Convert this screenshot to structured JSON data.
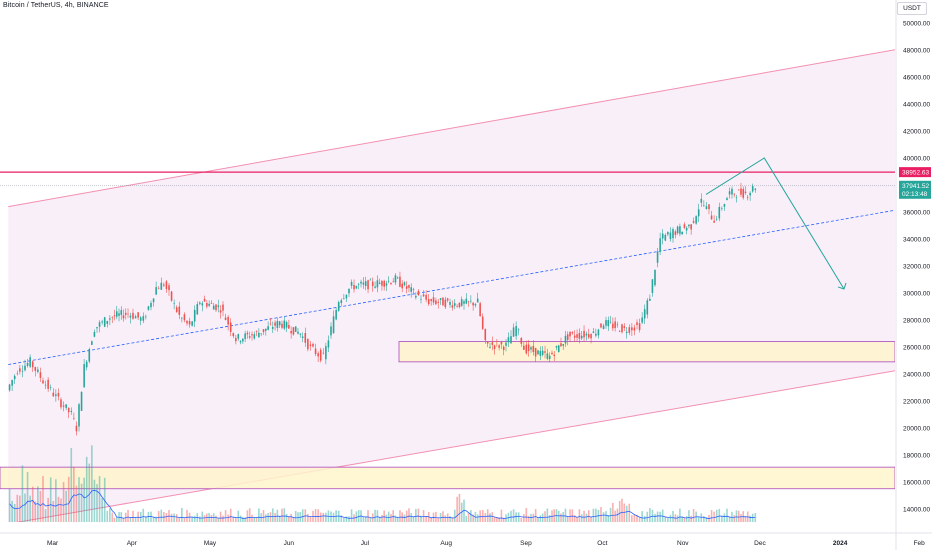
{
  "header": {
    "symbol_line": "Bitcoin / TetherUS, 4h, BINANCE"
  },
  "currency_button": "USDT",
  "price_axis": {
    "ticks": [
      14000,
      16000,
      18000,
      20000,
      22000,
      24000,
      26000,
      28000,
      30000,
      32000,
      34000,
      36000,
      38000,
      40000,
      42000,
      44000,
      46000,
      48000,
      50000
    ],
    "tick_labels": [
      "14000.00",
      "16000.00",
      "18000.00",
      "20000.00",
      "22000.00",
      "24000.00",
      "26000.00",
      "28000.00",
      "30000.00",
      "32000.00",
      "34000.00",
      "36000.00",
      "38000.00",
      "40000.00",
      "42000.00",
      "44000.00",
      "46000.00",
      "48000.00",
      "50000.00"
    ]
  },
  "time_axis": {
    "labels": [
      {
        "label": "Mar",
        "date": "2023-03-01"
      },
      {
        "label": "Apr",
        "date": "2023-04-01"
      },
      {
        "label": "May",
        "date": "2023-05-01"
      },
      {
        "label": "Jun",
        "date": "2023-06-01"
      },
      {
        "label": "Jul",
        "date": "2023-07-01"
      },
      {
        "label": "Aug",
        "date": "2023-08-01"
      },
      {
        "label": "Sep",
        "date": "2023-09-01"
      },
      {
        "label": "Oct",
        "date": "2023-10-01"
      },
      {
        "label": "Nov",
        "date": "2023-11-01"
      },
      {
        "label": "Dec",
        "date": "2023-12-01"
      },
      {
        "label": "2024",
        "date": "2024-01-01"
      },
      {
        "label": "Feb",
        "date": "2024-02-01"
      }
    ]
  },
  "badges": {
    "resistance": {
      "value": "38952.63",
      "color": "#e91e63"
    },
    "last_price": {
      "value": "37941.52",
      "countdown": "02:13:48",
      "color": "#26a69a"
    }
  },
  "colors": {
    "up": "#26a69a",
    "down": "#ef5350",
    "channel": "#f48fb1",
    "channel_fill": "#f3e5f5",
    "midline": "#2962ff",
    "zone_fill": "#fff4cc",
    "zone_border": "#ab47bc",
    "resistance": "#e91e63",
    "arrow": "#26a69a",
    "volume_ma": "#2962ff"
  },
  "chart_data": {
    "type": "candlestick",
    "symbol": "Bitcoin / TetherUS",
    "interval": "4h",
    "exchange": "BINANCE",
    "ylim": [
      13000,
      51000
    ],
    "xlim": [
      "2023-02-12",
      "2024-02-12"
    ],
    "price_path": [
      [
        "2023-02-12",
        22800
      ],
      [
        "2023-02-16",
        24300
      ],
      [
        "2023-02-21",
        24900
      ],
      [
        "2023-02-26",
        23500
      ],
      [
        "2023-03-03",
        22300
      ],
      [
        "2023-03-09",
        21000
      ],
      [
        "2023-03-11",
        20000
      ],
      [
        "2023-03-14",
        24500
      ],
      [
        "2023-03-18",
        27400
      ],
      [
        "2023-03-24",
        28200
      ],
      [
        "2023-03-31",
        28500
      ],
      [
        "2023-04-06",
        28000
      ],
      [
        "2023-04-11",
        30400
      ],
      [
        "2023-04-14",
        30700
      ],
      [
        "2023-04-20",
        28300
      ],
      [
        "2023-04-24",
        27500
      ],
      [
        "2023-04-28",
        29400
      ],
      [
        "2023-05-06",
        28900
      ],
      [
        "2023-05-12",
        26600
      ],
      [
        "2023-05-20",
        27000
      ],
      [
        "2023-05-29",
        27800
      ],
      [
        "2023-06-06",
        27000
      ],
      [
        "2023-06-10",
        25900
      ],
      [
        "2023-06-15",
        25200
      ],
      [
        "2023-06-21",
        29500
      ],
      [
        "2023-06-26",
        30500
      ],
      [
        "2023-07-06",
        30700
      ],
      [
        "2023-07-13",
        31000
      ],
      [
        "2023-07-20",
        30000
      ],
      [
        "2023-07-26",
        29400
      ],
      [
        "2023-08-06",
        29200
      ],
      [
        "2023-08-14",
        29300
      ],
      [
        "2023-08-17",
        26200
      ],
      [
        "2023-08-25",
        26100
      ],
      [
        "2023-08-29",
        27500
      ],
      [
        "2023-09-01",
        25900
      ],
      [
        "2023-09-11",
        25300
      ],
      [
        "2023-09-18",
        26800
      ],
      [
        "2023-09-28",
        27000
      ],
      [
        "2023-10-02",
        27800
      ],
      [
        "2023-10-10",
        27300
      ],
      [
        "2023-10-16",
        27600
      ],
      [
        "2023-10-20",
        29800
      ],
      [
        "2023-10-24",
        34000
      ],
      [
        "2023-10-29",
        34500
      ],
      [
        "2023-11-05",
        35000
      ],
      [
        "2023-11-09",
        36800
      ],
      [
        "2023-11-14",
        35400
      ],
      [
        "2023-11-20",
        37400
      ],
      [
        "2023-11-27",
        37400
      ],
      [
        "2023-11-30",
        37941
      ]
    ],
    "resistance_level": 38952.63,
    "last_price": 37941.52,
    "support_zones": [
      [
        24900,
        26400
      ],
      [
        15500,
        17100
      ]
    ],
    "channel": {
      "upper": [
        [
          "2023-02-12",
          36400
        ],
        [
          "2024-02-12",
          48700
        ]
      ],
      "mid": [
        [
          "2023-02-12",
          24700
        ],
        [
          "2024-02-12",
          36800
        ]
      ],
      "lower": [
        [
          "2023-02-12",
          12900
        ],
        [
          "2024-02-12",
          24900
        ]
      ]
    },
    "projection": [
      [
        "2023-12-03",
        40000
      ],
      [
        "2024-01-03",
        30300
      ]
    ]
  }
}
